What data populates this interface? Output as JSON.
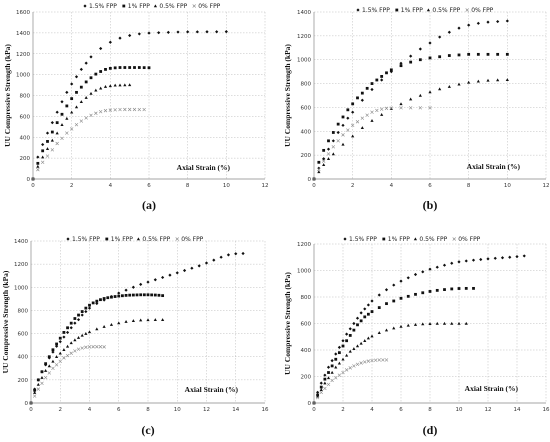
{
  "chart_data": [
    {
      "type": "scatter",
      "label": "(a)",
      "xlabel": "Axial Strain (%)",
      "ylabel": "UU Compressive  Strength (kPa)",
      "xlim": [
        0,
        12
      ],
      "ylim": [
        0,
        1600
      ],
      "xticks": [
        0,
        2,
        4,
        6,
        8,
        10,
        12
      ],
      "yticks": [
        0,
        200,
        400,
        600,
        800,
        1000,
        1200,
        1400,
        1600
      ],
      "grid": true,
      "legend_position": "top",
      "series": [
        {
          "name": "1.5% FPP",
          "marker": "diamond",
          "x": [
            0,
            0.25,
            0.5,
            0.75,
            1,
            1.25,
            1.5,
            1.75,
            2,
            2.25,
            2.5,
            2.75,
            3,
            3.5,
            4,
            4.5,
            5,
            5.5,
            6,
            6.5,
            7,
            7.5,
            8,
            8.5,
            9,
            9.5,
            10
          ],
          "y": [
            0,
            210,
            330,
            440,
            540,
            640,
            740,
            830,
            910,
            980,
            1050,
            1110,
            1170,
            1250,
            1310,
            1350,
            1375,
            1390,
            1398,
            1402,
            1405,
            1408,
            1410,
            1410,
            1411,
            1411,
            1412
          ]
        },
        {
          "name": "1% FPP",
          "marker": "square",
          "x": [
            0,
            0.25,
            0.5,
            0.75,
            1,
            1.25,
            1.5,
            1.75,
            2,
            2.25,
            2.5,
            2.75,
            3,
            3.25,
            3.5,
            3.75,
            4,
            4.25,
            4.5,
            4.75,
            5,
            5.25,
            5.5,
            5.75,
            6
          ],
          "y": [
            0,
            150,
            270,
            360,
            450,
            540,
            620,
            700,
            770,
            830,
            880,
            930,
            970,
            1005,
            1030,
            1050,
            1060,
            1065,
            1068,
            1068,
            1068,
            1068,
            1068,
            1067,
            1066
          ]
        },
        {
          "name": "0.5% FPP",
          "marker": "triangle",
          "x": [
            0,
            0.25,
            0.5,
            0.75,
            1,
            1.25,
            1.5,
            1.75,
            2,
            2.25,
            2.5,
            2.75,
            3,
            3.25,
            3.5,
            3.75,
            4,
            4.25,
            4.5,
            4.75,
            5
          ],
          "y": [
            0,
            120,
            210,
            290,
            370,
            440,
            520,
            580,
            640,
            690,
            740,
            780,
            820,
            850,
            870,
            885,
            893,
            898,
            900,
            901,
            902
          ]
        },
        {
          "name": "0% FPP",
          "marker": "x",
          "x": [
            0,
            0.25,
            0.5,
            0.75,
            1,
            1.25,
            1.5,
            1.75,
            2,
            2.25,
            2.5,
            2.75,
            3,
            3.25,
            3.5,
            3.75,
            4,
            4.25,
            4.5,
            4.75,
            5,
            5.25,
            5.5,
            5.75
          ],
          "y": [
            0,
            90,
            160,
            220,
            280,
            340,
            390,
            440,
            480,
            520,
            555,
            585,
            610,
            630,
            645,
            655,
            660,
            663,
            665,
            666,
            666,
            666,
            665,
            665
          ]
        }
      ]
    },
    {
      "type": "scatter",
      "label": "(b)",
      "xlabel": "Axial Strain (%)",
      "ylabel": "UU Compressive  Strength (kPa)",
      "xlim": [
        0,
        12
      ],
      "ylim": [
        0,
        1400
      ],
      "xticks": [
        0,
        2,
        4,
        6,
        8,
        10,
        12
      ],
      "yticks": [
        0,
        200,
        400,
        600,
        800,
        1000,
        1200,
        1400
      ],
      "grid": true,
      "legend_position": "top",
      "series": [
        {
          "name": "1.5% FPP",
          "marker": "diamond",
          "x": [
            0,
            0.25,
            0.5,
            0.75,
            1,
            1.25,
            1.5,
            1.75,
            2,
            2.5,
            3,
            3.5,
            4,
            4.5,
            5,
            5.5,
            6,
            6.5,
            7,
            7.5,
            8,
            8.5,
            9,
            9.5,
            10
          ],
          "y": [
            0,
            90,
            170,
            250,
            320,
            390,
            450,
            510,
            560,
            660,
            750,
            830,
            900,
            970,
            1030,
            1090,
            1140,
            1190,
            1230,
            1265,
            1290,
            1305,
            1315,
            1320,
            1325
          ]
        },
        {
          "name": "1% FPP",
          "marker": "square",
          "x": [
            0,
            0.25,
            0.5,
            0.75,
            1,
            1.25,
            1.5,
            1.75,
            2,
            2.25,
            2.5,
            2.75,
            3,
            3.25,
            3.5,
            3.75,
            4,
            4.5,
            5,
            5.5,
            6,
            6.5,
            7,
            7.5,
            8,
            8.5,
            9,
            9.5,
            10
          ],
          "y": [
            0,
            140,
            240,
            320,
            390,
            460,
            520,
            580,
            630,
            680,
            720,
            760,
            800,
            830,
            860,
            890,
            915,
            950,
            980,
            1000,
            1015,
            1025,
            1035,
            1040,
            1045,
            1045,
            1045,
            1045,
            1045
          ]
        },
        {
          "name": "0.5% FPP",
          "marker": "triangle",
          "x": [
            0,
            0.25,
            0.5,
            0.75,
            1,
            1.5,
            2,
            2.5,
            3,
            3.5,
            4,
            4.5,
            5,
            5.5,
            6,
            6.5,
            7,
            7.5,
            8,
            8.5,
            9,
            9.5,
            10
          ],
          "y": [
            0,
            60,
            120,
            170,
            210,
            290,
            360,
            430,
            490,
            540,
            590,
            630,
            670,
            700,
            730,
            755,
            775,
            795,
            810,
            820,
            827,
            830,
            832
          ]
        },
        {
          "name": "0% FPP",
          "marker": "x",
          "x": [
            0,
            0.25,
            0.5,
            0.75,
            1,
            1.25,
            1.5,
            1.75,
            2,
            2.25,
            2.5,
            2.75,
            3,
            3.25,
            3.5,
            3.75,
            4,
            4.5,
            5,
            5.5,
            6
          ],
          "y": [
            0,
            80,
            150,
            210,
            270,
            320,
            370,
            410,
            450,
            480,
            510,
            535,
            560,
            575,
            585,
            592,
            595,
            597,
            597,
            597,
            597
          ]
        }
      ]
    },
    {
      "type": "scatter",
      "label": "(c)",
      "xlabel": "Axial Strain (%)",
      "ylabel": "UU Compressive Strength (kPa)",
      "xlim": [
        0,
        16
      ],
      "ylim": [
        0,
        1400
      ],
      "xticks": [
        0,
        2,
        4,
        6,
        8,
        10,
        12,
        14,
        16
      ],
      "yticks": [
        0,
        200,
        400,
        600,
        800,
        1000,
        1200,
        1400
      ],
      "grid": true,
      "legend_position": "top",
      "series": [
        {
          "name": "1.5% FPP",
          "marker": "diamond",
          "x": [
            0,
            0.25,
            0.5,
            0.75,
            1,
            1.25,
            1.5,
            1.75,
            2,
            2.25,
            2.5,
            2.75,
            3,
            3.25,
            3.5,
            3.75,
            4,
            4.5,
            5,
            5.5,
            6,
            6.5,
            7,
            7.5,
            8,
            8.5,
            9,
            9.5,
            10,
            10.5,
            11,
            11.5,
            12,
            12.5,
            13,
            13.5,
            14,
            14.5
          ],
          "y": [
            0,
            120,
            200,
            270,
            330,
            390,
            440,
            490,
            530,
            570,
            610,
            650,
            690,
            720,
            760,
            790,
            820,
            860,
            890,
            920,
            950,
            975,
            1000,
            1025,
            1045,
            1065,
            1085,
            1105,
            1125,
            1145,
            1165,
            1185,
            1210,
            1235,
            1260,
            1280,
            1290,
            1292
          ]
        },
        {
          "name": "1% FPP",
          "marker": "square",
          "x": [
            0,
            0.25,
            0.5,
            0.75,
            1,
            1.25,
            1.5,
            1.75,
            2,
            2.25,
            2.5,
            2.75,
            3,
            3.25,
            3.5,
            3.75,
            4,
            4.25,
            4.5,
            4.75,
            5,
            5.25,
            5.5,
            5.75,
            6,
            6.25,
            6.5,
            6.75,
            7,
            7.25,
            7.5,
            7.75,
            8,
            8.25,
            8.5,
            8.75,
            9
          ],
          "y": [
            0,
            110,
            200,
            270,
            340,
            400,
            460,
            510,
            560,
            610,
            650,
            690,
            730,
            760,
            790,
            820,
            845,
            865,
            880,
            893,
            903,
            910,
            915,
            920,
            924,
            927,
            930,
            932,
            933,
            934,
            935,
            935,
            935,
            934,
            933,
            931,
            928
          ]
        },
        {
          "name": "0.5% FPP",
          "marker": "triangle",
          "x": [
            0,
            0.25,
            0.5,
            0.75,
            1,
            1.25,
            1.5,
            1.75,
            2,
            2.25,
            2.5,
            2.75,
            3,
            3.25,
            3.5,
            3.75,
            4,
            4.5,
            5,
            5.5,
            6,
            6.5,
            7,
            7.5,
            8,
            8.5,
            9
          ],
          "y": [
            0,
            90,
            160,
            220,
            280,
            320,
            360,
            400,
            430,
            460,
            490,
            520,
            545,
            565,
            585,
            600,
            615,
            640,
            660,
            678,
            692,
            703,
            711,
            716,
            719,
            720,
            720
          ]
        },
        {
          "name": "0% FPP",
          "marker": "x",
          "x": [
            0,
            0.25,
            0.5,
            0.75,
            1,
            1.25,
            1.5,
            1.75,
            2,
            2.25,
            2.5,
            2.75,
            3,
            3.25,
            3.5,
            3.75,
            4,
            4.25,
            4.5,
            4.75,
            5
          ],
          "y": [
            0,
            60,
            120,
            170,
            220,
            260,
            300,
            330,
            360,
            390,
            410,
            430,
            450,
            465,
            475,
            482,
            485,
            486,
            486,
            486,
            485
          ]
        }
      ]
    },
    {
      "type": "scatter",
      "label": "(d)",
      "xlabel": "Axial Strain (%)",
      "ylabel": "UU Compressive Strength (kPa)",
      "xlim": [
        0,
        16
      ],
      "ylim": [
        0,
        1200
      ],
      "xticks": [
        0,
        2,
        4,
        6,
        8,
        10,
        12,
        14,
        16
      ],
      "yticks": [
        0,
        200,
        400,
        600,
        800,
        1000,
        1200
      ],
      "grid": true,
      "legend_position": "top",
      "series": [
        {
          "name": "1.5% FPP",
          "marker": "diamond",
          "x": [
            0,
            0.25,
            0.5,
            0.75,
            1,
            1.25,
            1.5,
            1.75,
            2,
            2.25,
            2.5,
            2.75,
            3,
            3.25,
            3.5,
            3.75,
            4,
            4.5,
            5,
            5.5,
            6,
            6.5,
            7,
            7.5,
            8,
            8.5,
            9,
            9.5,
            10,
            10.5,
            11,
            11.5,
            12,
            12.5,
            13,
            13.5,
            14,
            14.5
          ],
          "y": [
            0,
            80,
            150,
            210,
            270,
            320,
            370,
            420,
            470,
            520,
            560,
            600,
            640,
            680,
            710,
            740,
            770,
            815,
            855,
            890,
            920,
            945,
            970,
            990,
            1010,
            1025,
            1040,
            1055,
            1065,
            1072,
            1078,
            1083,
            1088,
            1092,
            1096,
            1100,
            1105,
            1110
          ]
        },
        {
          "name": "1% FPP",
          "marker": "square",
          "x": [
            0,
            0.25,
            0.5,
            0.75,
            1,
            1.25,
            1.5,
            1.75,
            2,
            2.25,
            2.5,
            2.75,
            3,
            3.25,
            3.5,
            3.75,
            4,
            4.5,
            5,
            5.5,
            6,
            6.5,
            7,
            7.5,
            8,
            8.5,
            9,
            9.5,
            10,
            10.5,
            11
          ],
          "y": [
            0,
            60,
            120,
            180,
            230,
            280,
            330,
            380,
            430,
            470,
            510,
            550,
            590,
            620,
            650,
            670,
            690,
            720,
            750,
            770,
            790,
            805,
            820,
            832,
            842,
            850,
            856,
            861,
            864,
            865,
            865
          ]
        },
        {
          "name": "0.5% FPP",
          "marker": "triangle",
          "x": [
            0,
            0.25,
            0.5,
            0.75,
            1,
            1.25,
            1.5,
            1.75,
            2,
            2.25,
            2.5,
            2.75,
            3,
            3.25,
            3.5,
            3.75,
            4,
            4.5,
            5,
            5.5,
            6,
            6.5,
            7,
            7.5,
            8,
            8.5,
            9,
            9.5,
            10,
            10.5
          ],
          "y": [
            0,
            50,
            100,
            150,
            190,
            230,
            270,
            300,
            330,
            360,
            390,
            410,
            430,
            450,
            470,
            490,
            505,
            530,
            550,
            565,
            578,
            586,
            592,
            596,
            598,
            600,
            600,
            600,
            600,
            600
          ]
        },
        {
          "name": "0% FPP",
          "marker": "x",
          "x": [
            0,
            0.25,
            0.5,
            0.75,
            1,
            1.25,
            1.5,
            1.75,
            2,
            2.25,
            2.5,
            2.75,
            3,
            3.25,
            3.5,
            3.75,
            4,
            4.25,
            4.5,
            4.75,
            5
          ],
          "y": [
            0,
            40,
            80,
            110,
            140,
            170,
            190,
            210,
            230,
            250,
            265,
            280,
            292,
            302,
            310,
            316,
            320,
            323,
            325,
            325,
            325
          ]
        }
      ]
    }
  ]
}
